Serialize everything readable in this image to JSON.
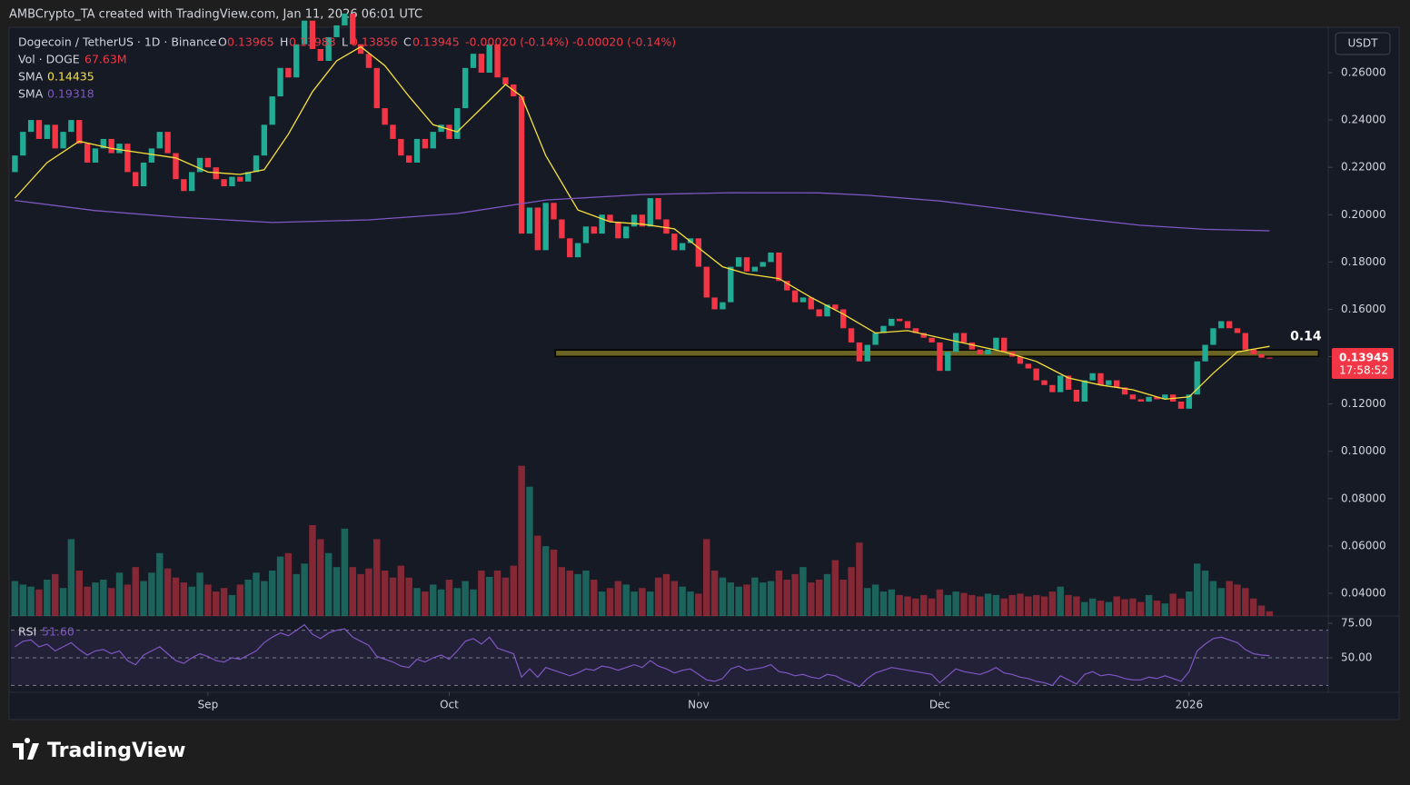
{
  "credit": "AMBCrypto_TA created with TradingView.com, Jan 11, 2026 06:01 UTC",
  "footer": "TradingView",
  "chart_data": {
    "type": "candlestick",
    "title": "Dogecoin / TetherUS · 1D · Binance",
    "currency": "USDT",
    "countdown": "17:58:52",
    "up_color": "#22ab94",
    "down_color": "#f23645",
    "ohlc_legend": [
      {
        "label": "O",
        "value": 0.13965
      },
      {
        "label": "H",
        "value": 0.13983
      },
      {
        "label": "L",
        "value": 0.13856
      },
      {
        "label": "C",
        "value": 0.13945
      }
    ],
    "change": "-0.00020 (-0.14%)",
    "xlim": [
      -0.5,
      163.3
    ],
    "xticks": [
      {
        "value": 24,
        "label": "Sep"
      },
      {
        "value": 54,
        "label": "Oct"
      },
      {
        "value": 85,
        "label": "Nov"
      },
      {
        "value": 115,
        "label": "Dec"
      },
      {
        "value": 146,
        "label": "2026"
      }
    ],
    "ylim": [
      0.0304,
      0.2792
    ],
    "yticks": [
      {
        "value": 0.26,
        "label": "0.26000"
      },
      {
        "value": 0.24,
        "label": "0.24000"
      },
      {
        "value": 0.22,
        "label": "0.22000"
      },
      {
        "value": 0.2,
        "label": "0.20000"
      },
      {
        "value": 0.18,
        "label": "0.18000"
      },
      {
        "value": 0.16,
        "label": "0.16000"
      },
      {
        "value": 0.14,
        "label": "0.14000"
      },
      {
        "value": 0.12,
        "label": "0.12000"
      },
      {
        "value": 0.1,
        "label": "0.10000"
      },
      {
        "value": 0.08,
        "label": "0.08000"
      },
      {
        "value": 0.06,
        "label": "0.06000"
      },
      {
        "value": 0.04,
        "label": "0.04000"
      }
    ],
    "first_open": 0.218,
    "close": [
      0.225,
      0.235,
      0.24,
      0.232,
      0.238,
      0.228,
      0.235,
      0.24,
      0.23,
      0.222,
      0.228,
      0.232,
      0.226,
      0.23,
      0.218,
      0.212,
      0.222,
      0.228,
      0.235,
      0.226,
      0.215,
      0.21,
      0.218,
      0.224,
      0.22,
      0.215,
      0.212,
      0.216,
      0.214,
      0.218,
      0.225,
      0.238,
      0.25,
      0.262,
      0.258,
      0.272,
      0.282,
      0.27,
      0.265,
      0.275,
      0.28,
      0.285,
      0.272,
      0.268,
      0.262,
      0.245,
      0.238,
      0.232,
      0.225,
      0.222,
      0.232,
      0.228,
      0.235,
      0.238,
      0.232,
      0.245,
      0.262,
      0.268,
      0.26,
      0.272,
      0.258,
      0.255,
      0.25,
      0.192,
      0.203,
      0.185,
      0.205,
      0.198,
      0.19,
      0.182,
      0.188,
      0.195,
      0.192,
      0.2,
      0.197,
      0.19,
      0.195,
      0.2,
      0.195,
      0.207,
      0.198,
      0.192,
      0.185,
      0.188,
      0.19,
      0.178,
      0.165,
      0.16,
      0.163,
      0.178,
      0.182,
      0.176,
      0.178,
      0.18,
      0.184,
      0.172,
      0.168,
      0.163,
      0.165,
      0.16,
      0.157,
      0.162,
      0.16,
      0.152,
      0.146,
      0.138,
      0.145,
      0.15,
      0.153,
      0.156,
      0.155,
      0.152,
      0.15,
      0.148,
      0.146,
      0.134,
      0.142,
      0.15,
      0.146,
      0.143,
      0.141,
      0.143,
      0.148,
      0.142,
      0.14,
      0.137,
      0.135,
      0.13,
      0.128,
      0.125,
      0.132,
      0.126,
      0.121,
      0.13,
      0.133,
      0.128,
      0.13,
      0.127,
      0.124,
      0.122,
      0.121,
      0.123,
      0.122,
      0.124,
      0.121,
      0.118,
      0.124,
      0.138,
      0.145,
      0.152,
      0.155,
      0.152,
      0.15,
      0.143,
      0.141,
      0.1396,
      0.13945
    ],
    "volume": {
      "name": "Vol · DOGE",
      "value_label": "67.63M",
      "lim": [
        0,
        2600
      ],
      "values": [
        500,
        450,
        420,
        380,
        520,
        600,
        400,
        1100,
        650,
        420,
        480,
        520,
        400,
        620,
        450,
        700,
        500,
        620,
        900,
        680,
        550,
        480,
        420,
        620,
        450,
        350,
        400,
        300,
        450,
        520,
        620,
        500,
        650,
        850,
        900,
        600,
        750,
        1300,
        1100,
        900,
        700,
        1250,
        700,
        600,
        680,
        1100,
        650,
        550,
        720,
        550,
        400,
        350,
        450,
        380,
        520,
        400,
        500,
        380,
        650,
        560,
        650,
        550,
        720,
        2150,
        1850,
        1150,
        1000,
        950,
        700,
        650,
        600,
        650,
        520,
        350,
        400,
        500,
        450,
        350,
        400,
        350,
        550,
        600,
        500,
        420,
        350,
        320,
        1100,
        650,
        550,
        480,
        420,
        450,
        550,
        480,
        500,
        650,
        520,
        600,
        700,
        480,
        520,
        600,
        800,
        520,
        700,
        1050,
        400,
        450,
        350,
        380,
        300,
        280,
        250,
        300,
        250,
        380,
        300,
        350,
        330,
        300,
        280,
        320,
        300,
        250,
        300,
        320,
        280,
        300,
        280,
        350,
        420,
        300,
        280,
        200,
        250,
        220,
        200,
        280,
        240,
        250,
        200,
        300,
        220,
        180,
        320,
        250,
        350,
        750,
        650,
        500,
        400,
        500,
        450,
        400,
        250,
        150,
        67.63
      ]
    },
    "sma": [
      {
        "name": "SMA",
        "value_label": "0.14435",
        "color": "#f7e13b",
        "x": [
          0,
          4,
          8,
          12,
          16,
          20,
          24,
          28,
          31,
          34,
          37,
          40,
          43,
          46,
          49,
          52,
          55,
          58,
          61,
          63,
          66,
          70,
          74,
          78,
          82,
          85,
          88,
          91,
          95,
          99,
          103,
          107,
          111,
          115,
          119,
          123,
          127,
          131,
          135,
          139,
          143,
          146,
          149,
          152,
          156
        ],
        "values": [
          0.207,
          0.222,
          0.231,
          0.228,
          0.226,
          0.224,
          0.218,
          0.217,
          0.219,
          0.234,
          0.252,
          0.265,
          0.271,
          0.263,
          0.25,
          0.238,
          0.235,
          0.245,
          0.255,
          0.25,
          0.225,
          0.202,
          0.197,
          0.196,
          0.194,
          0.186,
          0.178,
          0.175,
          0.173,
          0.165,
          0.158,
          0.15,
          0.151,
          0.148,
          0.145,
          0.142,
          0.138,
          0.131,
          0.128,
          0.126,
          0.122,
          0.123,
          0.133,
          0.142,
          0.14435
        ]
      },
      {
        "name": "SMA",
        "value_label": "0.19318",
        "color": "#7e57c2",
        "x": [
          0,
          10,
          20,
          32,
          44,
          55,
          66,
          78,
          89,
          100,
          106,
          115,
          123,
          132,
          140,
          148,
          156
        ],
        "values": [
          0.206,
          0.2017,
          0.199,
          0.1967,
          0.1978,
          0.2005,
          0.2062,
          0.2085,
          0.2093,
          0.2092,
          0.2082,
          0.2058,
          0.2024,
          0.1985,
          0.1955,
          0.1938,
          0.19318
        ]
      }
    ],
    "zone": {
      "label": "0.14",
      "ylim": [
        0.1401,
        0.1428
      ],
      "xlim": [
        67.2,
        162.1
      ],
      "color": "#6b6424"
    },
    "rsi": {
      "name": "RSI",
      "value_label": "51.60",
      "color": "#7e57c2",
      "ylim": [
        25,
        79
      ],
      "band": [
        30,
        70
      ],
      "yticks": [
        {
          "value": 75,
          "label": "75.00"
        },
        {
          "value": 50,
          "label": "50.00"
        }
      ],
      "values": [
        58,
        62,
        63,
        58,
        60,
        55,
        58,
        61,
        56,
        52,
        55,
        56,
        53,
        55,
        48,
        45,
        52,
        55,
        58,
        53,
        48,
        46,
        50,
        53,
        51,
        48,
        47,
        50,
        49,
        52,
        55,
        61,
        65,
        68,
        66,
        70,
        74,
        67,
        64,
        68,
        70,
        71,
        65,
        62,
        59,
        51,
        49,
        47,
        44,
        43,
        49,
        47,
        50,
        52,
        49,
        55,
        62,
        64,
        60,
        65,
        57,
        55,
        53,
        36,
        42,
        36,
        43,
        41,
        39,
        37,
        39,
        42,
        41,
        44,
        43,
        41,
        43,
        45,
        43,
        48,
        44,
        42,
        39,
        41,
        42,
        38,
        34,
        33,
        35,
        42,
        44,
        41,
        42,
        43,
        45,
        40,
        39,
        37,
        38,
        36,
        35,
        38,
        37,
        34,
        32,
        29,
        35,
        39,
        41,
        43,
        42,
        41,
        40,
        39,
        38,
        32,
        37,
        42,
        40,
        39,
        38,
        40,
        43,
        39,
        38,
        36,
        35,
        33,
        32,
        30,
        37,
        34,
        31,
        38,
        40,
        37,
        38,
        37,
        35,
        34,
        34,
        36,
        35,
        37,
        35,
        33,
        40,
        55,
        60,
        64,
        65,
        63,
        61,
        56,
        53,
        52,
        51.6
      ]
    }
  }
}
